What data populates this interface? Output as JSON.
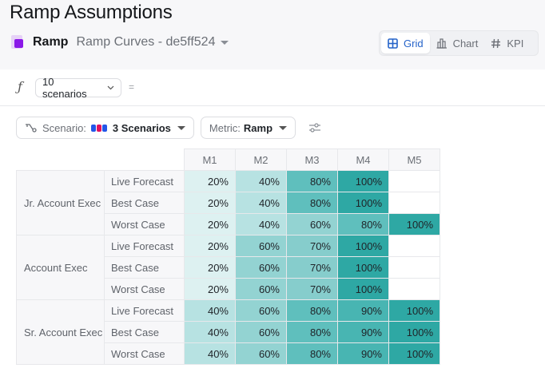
{
  "page": {
    "title": "Ramp Assumptions",
    "breadcrumb": {
      "app_name": "Ramp",
      "doc_name": "Ramp Curves - de5ff524"
    }
  },
  "view_toggle": {
    "options": [
      {
        "label": "Grid",
        "icon": "grid-icon",
        "active": true
      },
      {
        "label": "Chart",
        "icon": "bar-chart-icon",
        "active": false
      },
      {
        "label": "KPI",
        "icon": "hash-icon",
        "active": false
      }
    ]
  },
  "formula_bar": {
    "fx_symbol": "ƒ",
    "scenario_select": "10 scenarios",
    "equals": "="
  },
  "filters": {
    "scenario": {
      "label": "Scenario:",
      "value": "3 Scenarios",
      "swatch_colors": [
        "#2356e8",
        "#e0115f",
        "#2356e8"
      ]
    },
    "metric": {
      "label": "Metric:",
      "value": "Ramp"
    }
  },
  "grid": {
    "columns": [
      "M1",
      "M2",
      "M3",
      "M4",
      "M5"
    ],
    "groups": [
      {
        "name": "Jr. Account Exec",
        "rows": [
          {
            "scenario": "Live Forecast",
            "values": [
              "20%",
              "40%",
              "80%",
              "100%",
              ""
            ]
          },
          {
            "scenario": "Best Case",
            "values": [
              "20%",
              "40%",
              "80%",
              "100%",
              ""
            ]
          },
          {
            "scenario": "Worst Case",
            "values": [
              "20%",
              "40%",
              "60%",
              "80%",
              "100%"
            ]
          }
        ]
      },
      {
        "name": "Account Exec",
        "rows": [
          {
            "scenario": "Live Forecast",
            "values": [
              "20%",
              "60%",
              "70%",
              "100%",
              ""
            ]
          },
          {
            "scenario": "Best Case",
            "values": [
              "20%",
              "60%",
              "70%",
              "100%",
              ""
            ]
          },
          {
            "scenario": "Worst Case",
            "values": [
              "20%",
              "60%",
              "70%",
              "100%",
              ""
            ]
          }
        ]
      },
      {
        "name": "Sr. Account Exec",
        "rows": [
          {
            "scenario": "Live Forecast",
            "values": [
              "40%",
              "60%",
              "80%",
              "90%",
              "100%"
            ]
          },
          {
            "scenario": "Best Case",
            "values": [
              "40%",
              "60%",
              "80%",
              "90%",
              "100%"
            ]
          },
          {
            "scenario": "Worst Case",
            "values": [
              "40%",
              "60%",
              "80%",
              "90%",
              "100%"
            ]
          }
        ]
      }
    ],
    "heat_colors": {
      "20%": "#ddf1f1",
      "40%": "#b7e2e2",
      "60%": "#93d3d2",
      "70%": "#86cdcc",
      "80%": "#5fbfbd",
      "90%": "#48b5b2",
      "100%": "#2ea8a4"
    }
  }
}
